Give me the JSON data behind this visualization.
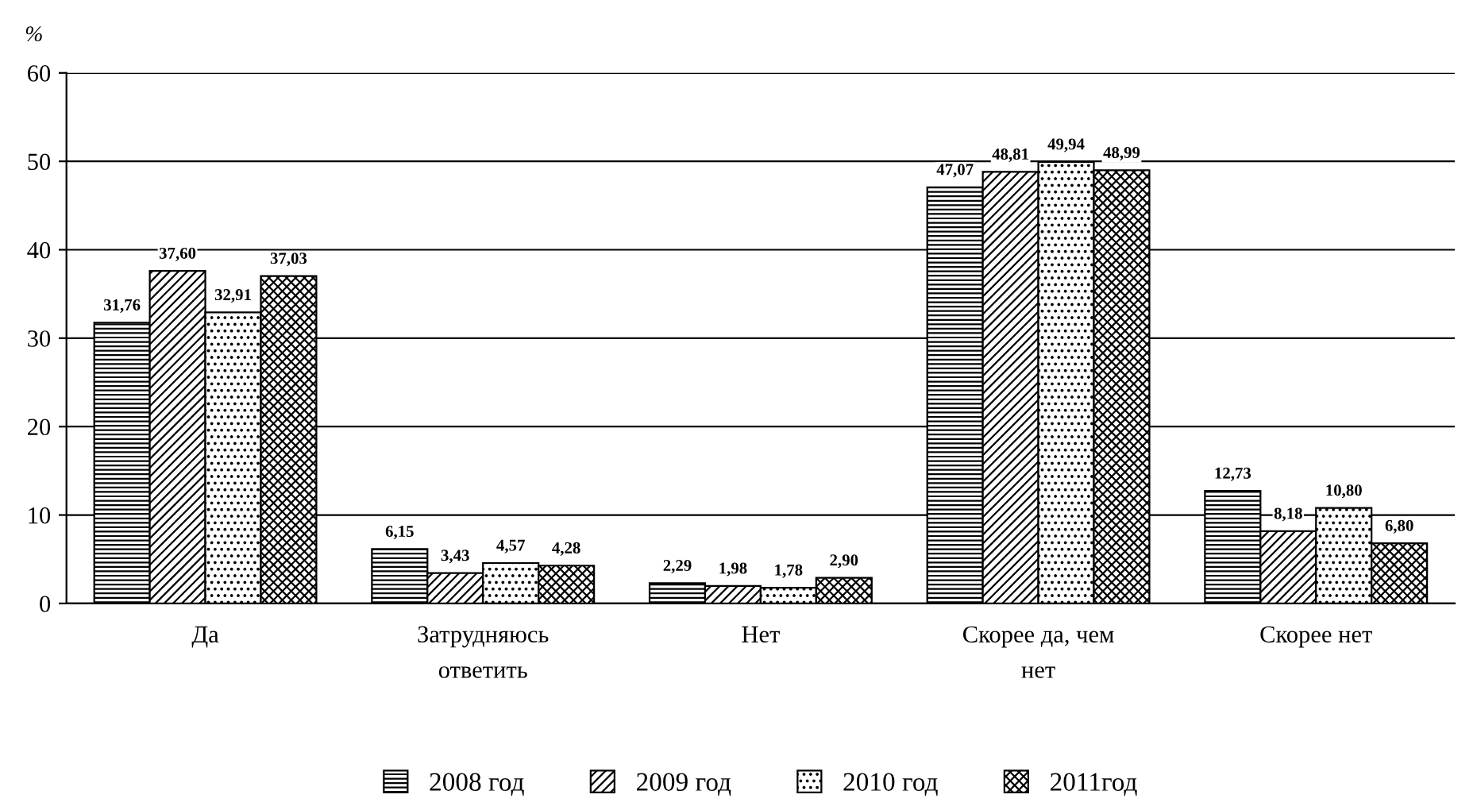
{
  "chart_data": {
    "type": "bar",
    "ylabel": "%",
    "categories": [
      "Да",
      "Затрудняюсь\nответить",
      "Нет",
      "Скорее да, чем\nнет",
      "Скорее нет"
    ],
    "series": [
      {
        "name": "2008 год",
        "color": "#000000",
        "values": [
          31.76,
          6.15,
          2.29,
          47.07,
          12.73
        ],
        "value_labels": [
          "31,76",
          "6,15",
          "2,29",
          "47,07",
          "12,73"
        ]
      },
      {
        "name": "2009 год",
        "color": "#000000",
        "values": [
          37.6,
          3.43,
          1.98,
          48.81,
          8.18
        ],
        "value_labels": [
          "37,60",
          "3,43",
          "1,98",
          "48,81",
          "8,18"
        ]
      },
      {
        "name": "2010 год",
        "color": "#000000",
        "values": [
          32.91,
          4.57,
          1.78,
          49.94,
          10.8
        ],
        "value_labels": [
          "32,91",
          "4,57",
          "1,78",
          "49,94",
          "10,80"
        ]
      },
      {
        "name": "2011год",
        "color": "#000000",
        "values": [
          37.03,
          4.28,
          2.9,
          48.99,
          6.8
        ],
        "value_labels": [
          "37,03",
          "4,28",
          "2,90",
          "48,99",
          "6,80"
        ]
      }
    ],
    "ylim": [
      0,
      60
    ],
    "yticks": [
      0,
      10,
      20,
      30,
      40,
      50,
      60
    ],
    "grid": "y",
    "legend": "bottom"
  }
}
